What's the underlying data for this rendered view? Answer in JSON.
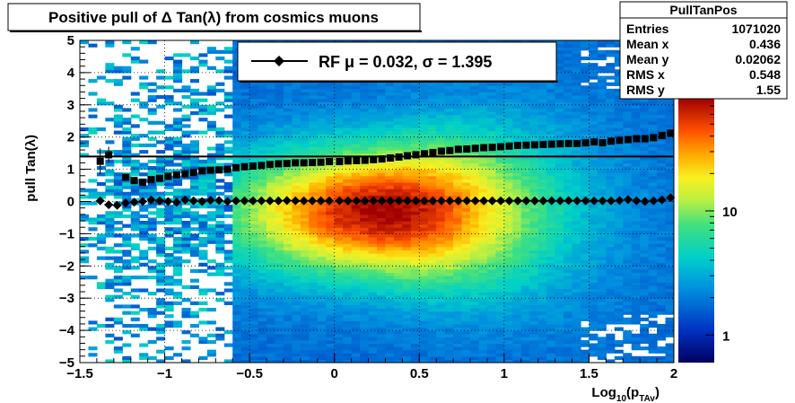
{
  "chart_data": {
    "type": "heatmap",
    "title": "Positive pull of Δ Tan(λ) from cosmics muons",
    "xlabel": "Log",
    "xlabel_sub": "10",
    "xlabel_arg": "(p",
    "xlabel_arg_sub": "TAv",
    "xlabel_close": ")",
    "ylabel": "pull Tan(λ)",
    "xlim": [
      -1.5,
      2
    ],
    "ylim": [
      -5,
      5
    ],
    "x_ticks": [
      "−1.5",
      "−1",
      "−0.5",
      "0",
      "0.5",
      "1",
      "1.5",
      "2"
    ],
    "x_tick_values": [
      -1.5,
      -1,
      -0.5,
      0,
      0.5,
      1,
      1.5,
      2
    ],
    "y_ticks": [
      "−5",
      "−4",
      "−3",
      "−2",
      "−1",
      "0",
      "1",
      "2",
      "3",
      "4",
      "5"
    ],
    "y_tick_values": [
      -5,
      -4,
      -3,
      -2,
      -1,
      0,
      1,
      2,
      3,
      4,
      5
    ],
    "colorbar_labels": [
      "10",
      "1"
    ],
    "colorbar_label_values": [
      10,
      1
    ],
    "grid": true,
    "legend": {
      "placement": "top-center",
      "label": "RF μ =  0.032, σ =   1.395",
      "mu": 0.032,
      "sigma": 1.395
    },
    "stats_box": {
      "title": "PullTanPos",
      "rows": [
        {
          "label": "Entries",
          "value": "1071020"
        },
        {
          "label": "Mean x",
          "value": "0.436"
        },
        {
          "label": "Mean y",
          "value": "0.02062"
        },
        {
          "label": "RMS x",
          "value": "0.548"
        },
        {
          "label": "RMS y",
          "value": "1.55"
        }
      ]
    },
    "sigma_line": 1.395,
    "series": [
      {
        "name": "mean",
        "x": [
          -1.38,
          -1.33,
          -1.28,
          -1.23,
          -1.18,
          -1.13,
          -1.08,
          -1.03,
          -0.98,
          -0.93,
          -0.88,
          -0.83,
          -0.78,
          -0.73,
          -0.68,
          -0.63,
          -0.58,
          -0.53,
          -0.48,
          -0.43,
          -0.38,
          -0.33,
          -0.28,
          -0.23,
          -0.18,
          -0.13,
          -0.08,
          -0.03,
          0.03,
          0.08,
          0.13,
          0.18,
          0.23,
          0.28,
          0.33,
          0.38,
          0.43,
          0.48,
          0.53,
          0.58,
          0.63,
          0.68,
          0.73,
          0.78,
          0.83,
          0.88,
          0.93,
          0.98,
          1.03,
          1.08,
          1.13,
          1.18,
          1.23,
          1.28,
          1.33,
          1.38,
          1.43,
          1.48,
          1.53,
          1.58,
          1.63,
          1.68,
          1.73,
          1.78,
          1.83,
          1.88,
          1.93,
          1.98
        ],
        "y": [
          0.02,
          -0.1,
          -0.12,
          -0.05,
          -0.02,
          0.0,
          0.05,
          0.02,
          0.0,
          -0.02,
          0.05,
          0.02,
          0.0,
          0.04,
          0.03,
          0.0,
          0.02,
          0.02,
          0.02,
          0.02,
          0.02,
          0.02,
          0.03,
          0.02,
          0.02,
          0.02,
          0.02,
          0.02,
          0.02,
          0.02,
          0.02,
          0.02,
          0.02,
          0.02,
          0.02,
          0.02,
          0.02,
          0.02,
          0.02,
          0.02,
          0.02,
          0.02,
          0.02,
          0.02,
          0.02,
          0.02,
          0.02,
          0.02,
          0.02,
          0.02,
          0.02,
          0.02,
          0.02,
          0.02,
          0.02,
          0.03,
          0.02,
          0.02,
          0.02,
          0.02,
          0.02,
          0.03,
          0.06,
          0.02,
          0.0,
          0.02,
          0.05,
          0.12
        ]
      },
      {
        "name": "sigma",
        "x": [
          -1.38,
          -1.33,
          -1.28,
          -1.23,
          -1.18,
          -1.13,
          -1.08,
          -1.03,
          -0.98,
          -0.93,
          -0.88,
          -0.83,
          -0.78,
          -0.73,
          -0.68,
          -0.63,
          -0.58,
          -0.53,
          -0.48,
          -0.43,
          -0.38,
          -0.33,
          -0.28,
          -0.23,
          -0.18,
          -0.13,
          -0.08,
          -0.03,
          0.03,
          0.08,
          0.13,
          0.18,
          0.23,
          0.28,
          0.33,
          0.38,
          0.43,
          0.48,
          0.53,
          0.58,
          0.63,
          0.68,
          0.73,
          0.78,
          0.83,
          0.88,
          0.93,
          0.98,
          1.03,
          1.08,
          1.13,
          1.18,
          1.23,
          1.28,
          1.33,
          1.38,
          1.43,
          1.48,
          1.53,
          1.58,
          1.63,
          1.68,
          1.73,
          1.78,
          1.83,
          1.88,
          1.93,
          1.98
        ],
        "y": [
          1.25,
          1.45,
          null,
          0.75,
          0.65,
          0.6,
          0.68,
          0.72,
          0.78,
          0.82,
          0.86,
          0.9,
          0.95,
          0.97,
          0.98,
          1.0,
          1.05,
          1.08,
          1.1,
          1.12,
          1.15,
          1.17,
          1.18,
          1.2,
          1.2,
          1.21,
          1.22,
          1.24,
          1.24,
          1.26,
          1.27,
          1.28,
          1.3,
          1.32,
          1.35,
          1.38,
          1.42,
          1.45,
          1.48,
          1.52,
          1.56,
          1.58,
          1.62,
          1.63,
          1.65,
          1.67,
          1.68,
          1.7,
          1.72,
          1.74,
          1.75,
          1.76,
          1.77,
          1.78,
          1.79,
          1.8,
          1.8,
          1.82,
          1.85,
          1.82,
          1.87,
          1.9,
          1.92,
          1.95,
          1.95,
          1.98,
          2.05,
          2.12
        ],
        "yerr": [
          0.4,
          0.25,
          null,
          0.1,
          0.06,
          0.05,
          0.04,
          0.03,
          0.03,
          0.02,
          0.02,
          0.02,
          0.02,
          0.02,
          0.02,
          0.02,
          0.02,
          0.02,
          0.02,
          0.02,
          0.02,
          0.02,
          0.02,
          0.02,
          0.02,
          0.02,
          0.02,
          0.02,
          0.02,
          0.02,
          0.02,
          0.02,
          0.02,
          0.02,
          0.02,
          0.02,
          0.02,
          0.02,
          0.02,
          0.02,
          0.02,
          0.02,
          0.02,
          0.02,
          0.02,
          0.02,
          0.02,
          0.02,
          0.02,
          0.02,
          0.02,
          0.02,
          0.02,
          0.02,
          0.02,
          0.02,
          0.02,
          0.02,
          0.02,
          0.02,
          0.02,
          0.02,
          0.02,
          0.02,
          0.02,
          0.02,
          0.02,
          0.03
        ]
      }
    ]
  }
}
